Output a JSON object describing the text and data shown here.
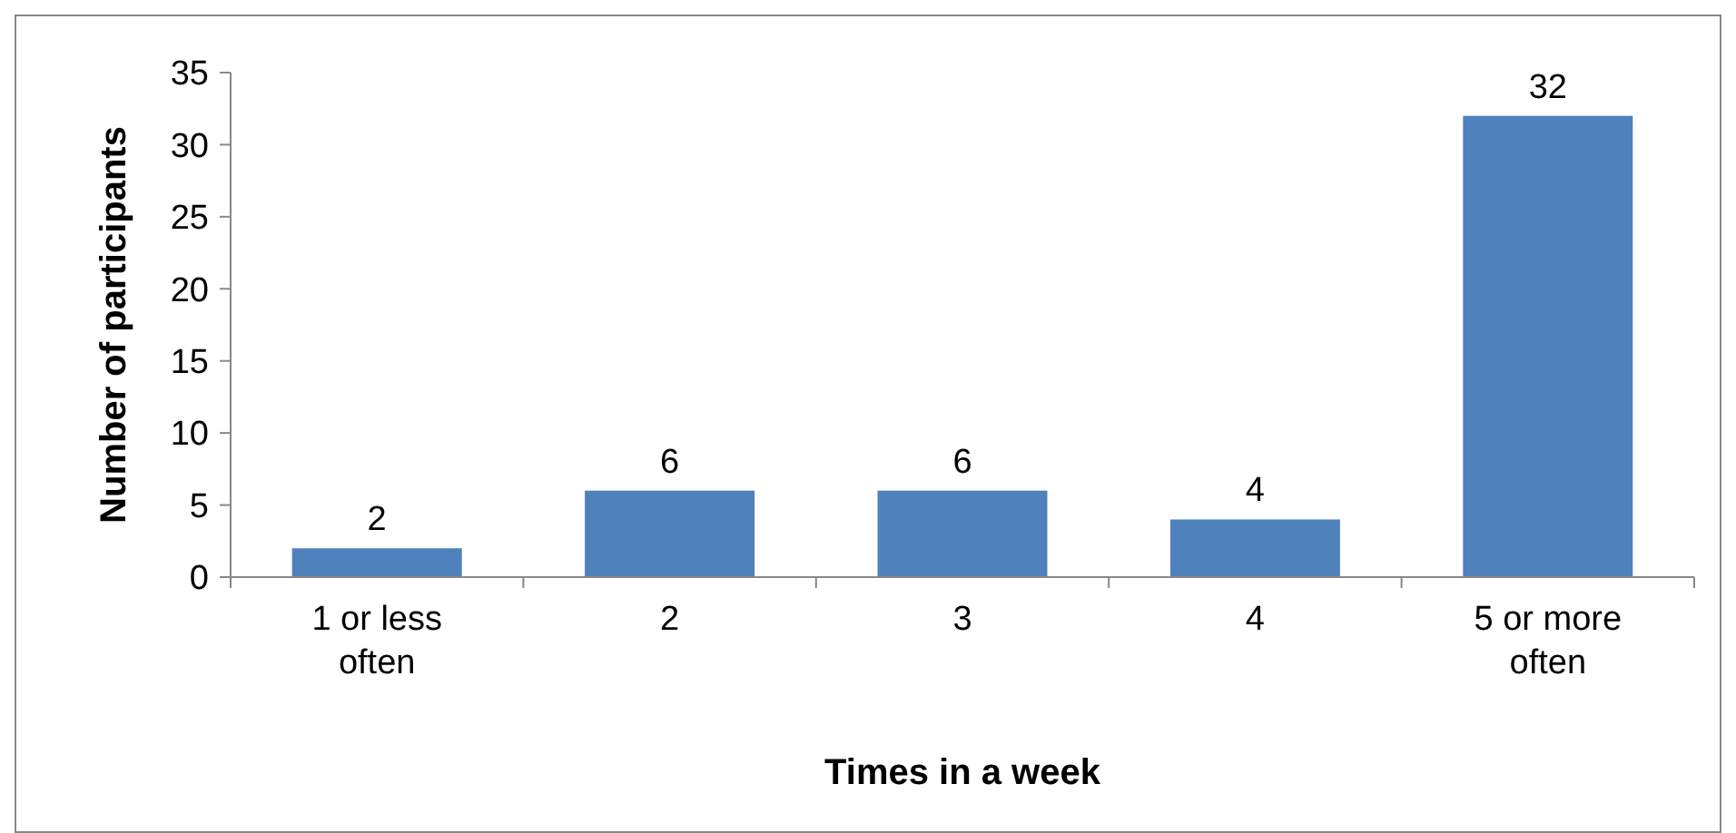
{
  "chart_data": {
    "type": "bar",
    "categories": [
      "1 or less often",
      "2",
      "3",
      "4",
      "5 or more often"
    ],
    "values": [
      2,
      6,
      6,
      4,
      32
    ],
    "color": "#4f81bd",
    "ylim": [
      0,
      35
    ],
    "yticks": [
      0,
      5,
      10,
      15,
      20,
      25,
      30,
      35
    ],
    "grid": false,
    "data_labels": true,
    "xlabel": "Times in a week",
    "ylabel": "Number of participants"
  }
}
